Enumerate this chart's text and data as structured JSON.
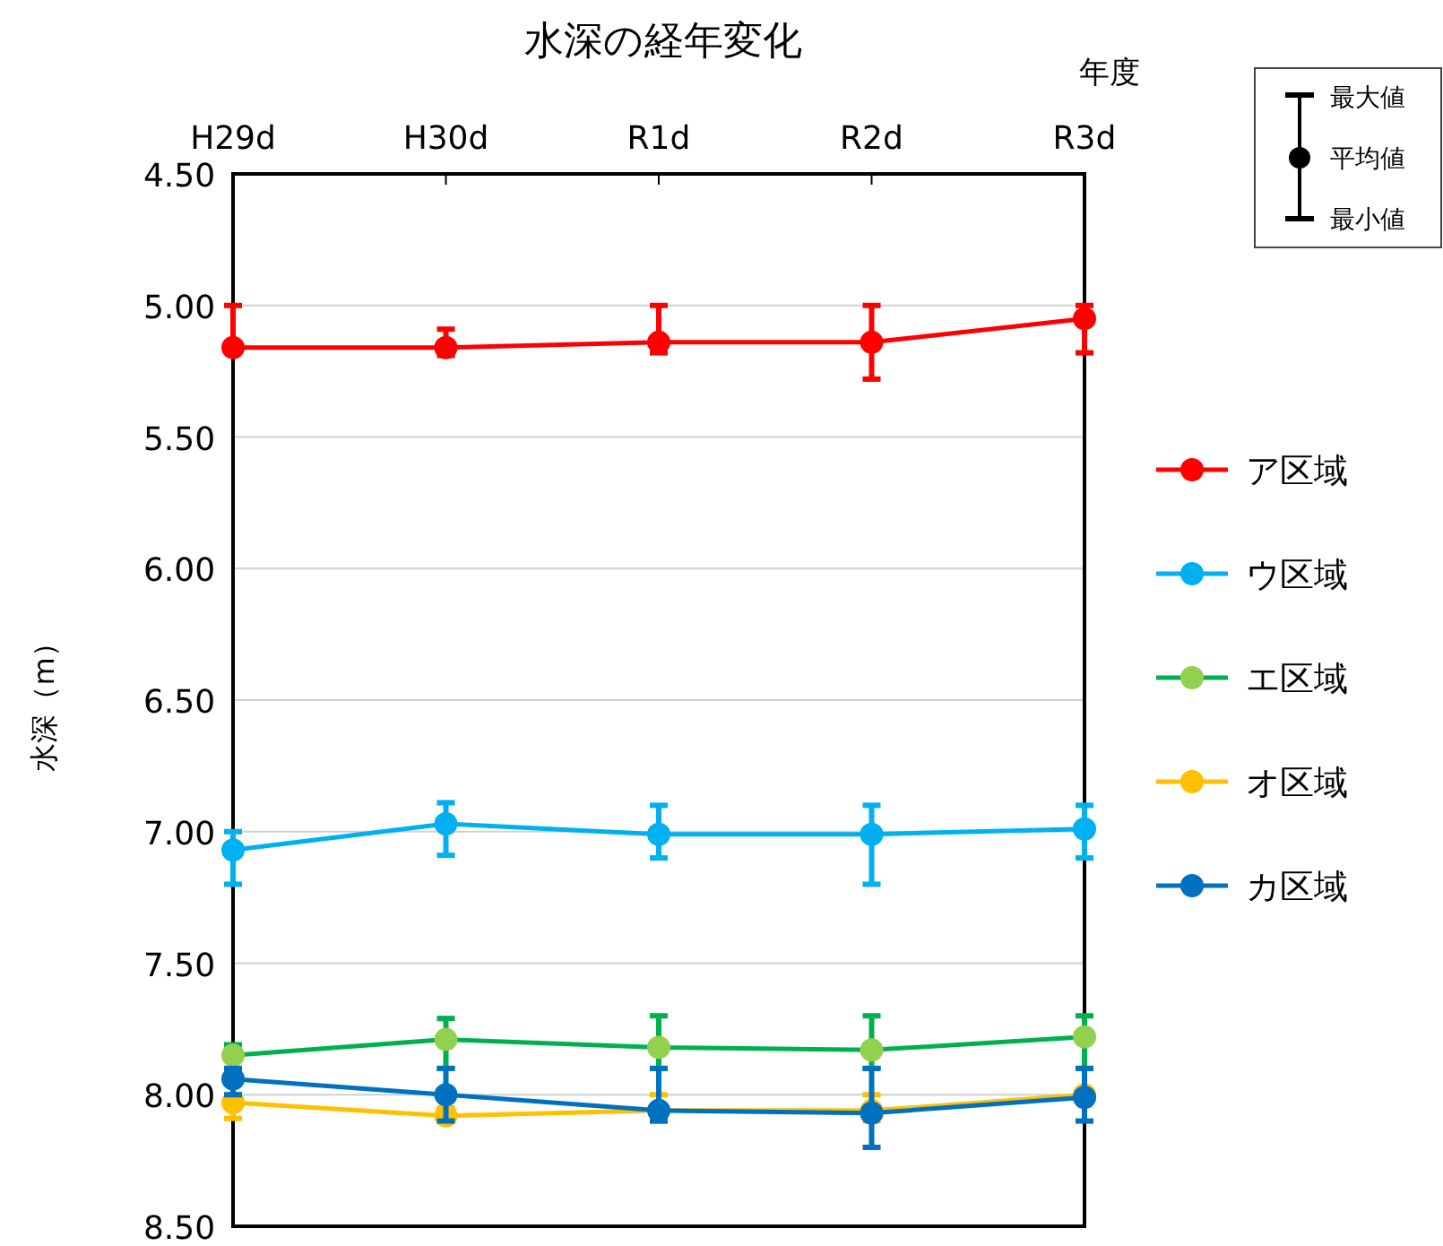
{
  "chart_data": {
    "type": "line",
    "title": "水深の経年変化",
    "xlabel": "年度",
    "ylabel": "水深（m）",
    "categories": [
      "H29d",
      "H30d",
      "R1d",
      "R2d",
      "R3d"
    ],
    "ylim": [
      8.5,
      4.5
    ],
    "yticks": [
      {
        "value": 4.5,
        "label": "4.50"
      },
      {
        "value": 5.0,
        "label": "5.00"
      },
      {
        "value": 5.5,
        "label": "5.50"
      },
      {
        "value": 6.0,
        "label": "6.00"
      },
      {
        "value": 6.5,
        "label": "6.50"
      },
      {
        "value": 7.0,
        "label": "7.00"
      },
      {
        "value": 7.5,
        "label": "7.50"
      },
      {
        "value": 8.0,
        "label": "8.00"
      },
      {
        "value": 8.5,
        "label": "8.50"
      }
    ],
    "grid": "y",
    "legend": "right",
    "marker": "circle",
    "line_style": "solid",
    "annotations": [
      "最大値",
      "平均値",
      "最小値"
    ],
    "series": [
      {
        "name": "ア区域",
        "color": "#ff0000",
        "values": [
          5.16,
          5.16,
          5.14,
          5.14,
          5.05
        ],
        "errors": [
          [
            5.0,
            5.16
          ],
          [
            5.09,
            5.19
          ],
          [
            5.0,
            5.18
          ],
          [
            5.0,
            5.28
          ],
          [
            5.0,
            5.18
          ]
        ]
      },
      {
        "name": "ウ区域",
        "color": "#00b0f0",
        "values": [
          7.07,
          6.97,
          7.01,
          7.01,
          6.99
        ],
        "errors": [
          [
            7.0,
            7.2
          ],
          [
            6.89,
            7.09
          ],
          [
            6.9,
            7.1
          ],
          [
            6.9,
            7.2
          ],
          [
            6.9,
            7.1
          ]
        ]
      },
      {
        "name": "エ区域",
        "color": "#00b050",
        "colors": [
          "#92d050",
          "#92d050",
          "#92d050",
          "#92d050",
          "#92d050"
        ],
        "values": [
          7.85,
          7.79,
          7.82,
          7.83,
          7.78
        ],
        "errors": [
          [
            7.81,
            7.9
          ],
          [
            7.71,
            7.9
          ],
          [
            7.7,
            7.9
          ],
          [
            7.7,
            7.9
          ],
          [
            7.7,
            7.9
          ]
        ]
      },
      {
        "name": "オ区域",
        "color": "#ffc000",
        "values": [
          8.03,
          8.08,
          8.06,
          8.06,
          8.0
        ],
        "errors": [
          [
            8.0,
            8.09
          ],
          [
            8.05,
            8.1
          ],
          [
            8.0,
            8.1
          ],
          [
            8.0,
            8.1
          ],
          [
            8.0,
            8.0
          ]
        ]
      },
      {
        "name": "カ区域",
        "color": "#0070c0",
        "values": [
          7.94,
          8.0,
          8.06,
          8.07,
          8.01
        ],
        "errors": [
          [
            7.9,
            8.0
          ],
          [
            7.9,
            8.1
          ],
          [
            7.9,
            8.1
          ],
          [
            7.9,
            8.2
          ],
          [
            7.9,
            8.1
          ]
        ]
      }
    ]
  }
}
